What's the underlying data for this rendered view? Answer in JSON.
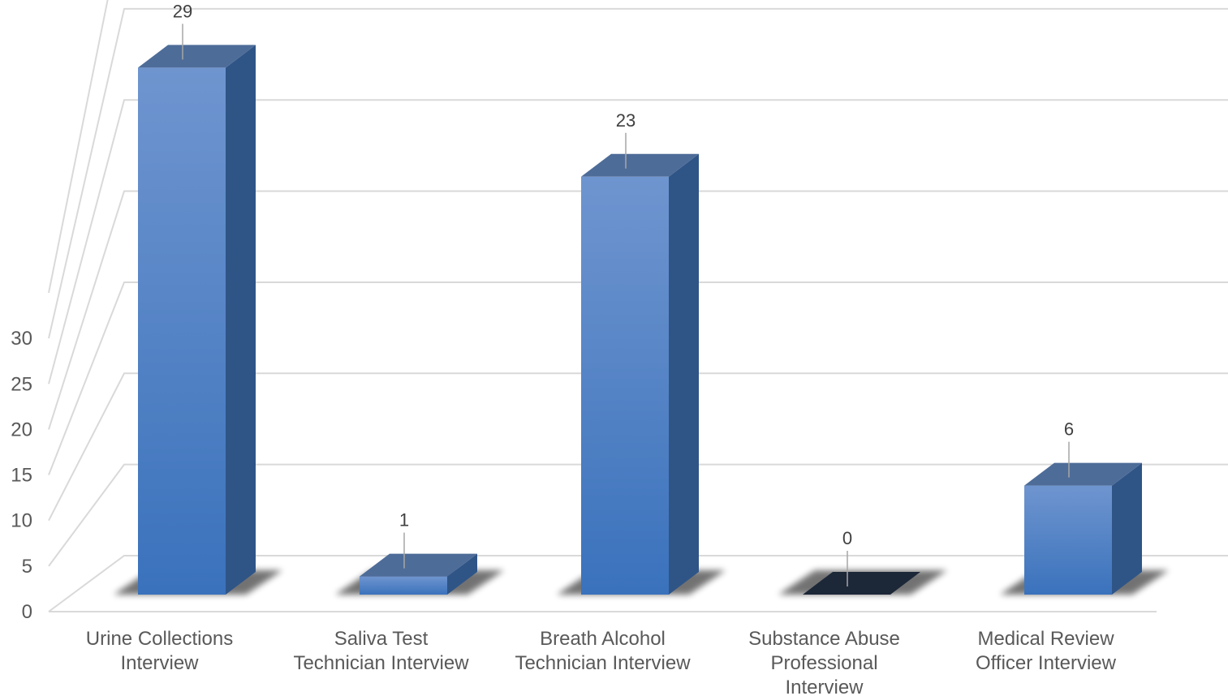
{
  "chart_data": {
    "type": "bar",
    "three_d": true,
    "title": "",
    "xlabel": "",
    "ylabel": "",
    "ylim": [
      0,
      30
    ],
    "ytick_step": 5,
    "grid": true,
    "legend": "none",
    "categories": [
      [
        "Urine Collections",
        "Interview"
      ],
      [
        "Saliva Test",
        "Technician Interview"
      ],
      [
        "Breath Alcohol",
        "Technician Interview"
      ],
      [
        "Substance Abuse",
        "Professional",
        "Interview"
      ],
      [
        "Medical Review",
        "Officer Interview"
      ]
    ],
    "values": [
      29,
      1,
      23,
      0,
      6
    ],
    "data_labels": [
      "29",
      "1",
      "23",
      "0",
      "6"
    ],
    "colors": {
      "bar_front_top": "#6f95cf",
      "bar_front_bottom": "#3a72bc",
      "bar_side": "#2f5587",
      "bar_top": "#4e6c98",
      "zero_bar": "#1c2738",
      "grid": "#d9d9d9",
      "text": "#595959"
    }
  }
}
